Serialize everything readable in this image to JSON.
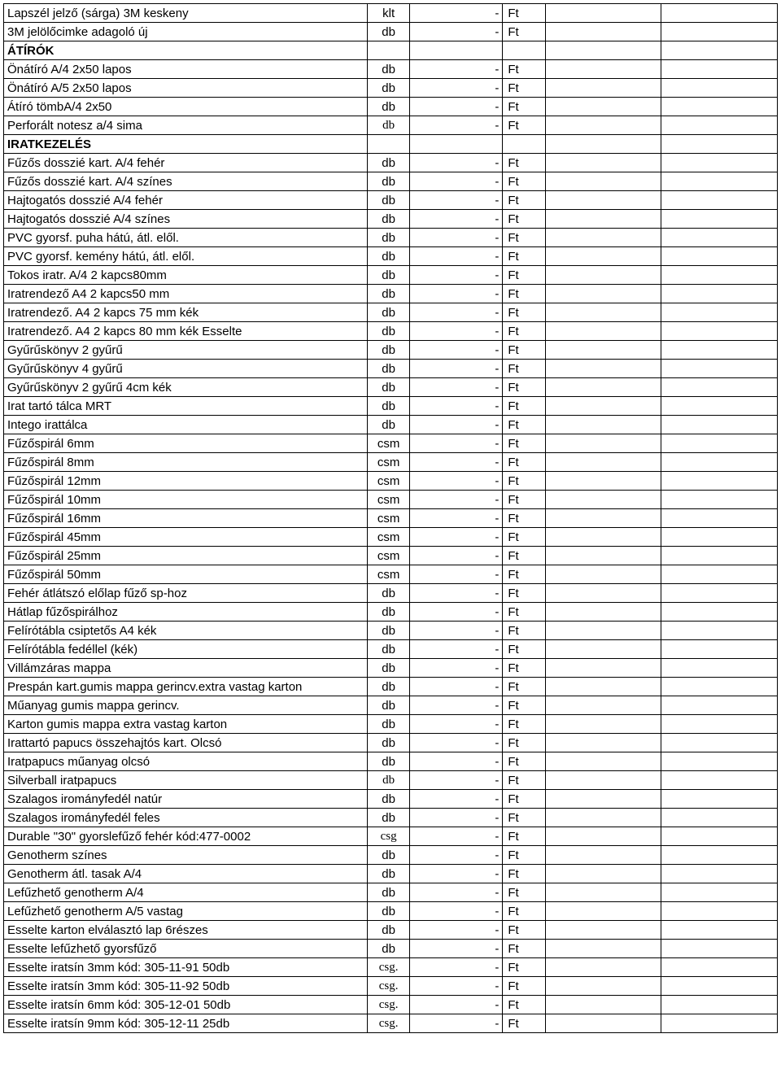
{
  "currency": "Ft",
  "price_placeholder": "-",
  "rows": [
    {
      "desc": "Lapszél jelző (sárga) 3M keskeny",
      "unit": "klt",
      "price": "-",
      "currency": "Ft"
    },
    {
      "desc": "3M jelölőcimke adagoló új",
      "unit": "db",
      "price": "-",
      "currency": "Ft"
    },
    {
      "desc": "ÁTÍRÓK",
      "section": true
    },
    {
      "desc": "Önátíró A/4 2x50 lapos",
      "unit": "db",
      "price": "-",
      "currency": "Ft"
    },
    {
      "desc": "Önátíró A/5 2x50 lapos",
      "unit": "db",
      "price": "-",
      "currency": "Ft"
    },
    {
      "desc": "Átíró tömbA/4 2x50",
      "unit": "db",
      "price": "-",
      "currency": "Ft"
    },
    {
      "desc": "Perforált notesz a/4 sima",
      "unit": "db",
      "unit_serif": true,
      "price": "-",
      "currency": "Ft"
    },
    {
      "desc": "IRATKEZELÉS",
      "section": true
    },
    {
      "desc": "Fűzős dosszié kart. A/4 fehér",
      "unit": "db",
      "price": "-",
      "currency": "Ft"
    },
    {
      "desc": "Fűzős dosszié kart.  A/4 színes",
      "unit": "db",
      "price": "-",
      "currency": "Ft"
    },
    {
      "desc": "Hajtogatós dosszié A/4 fehér",
      "unit": "db",
      "price": "-",
      "currency": "Ft"
    },
    {
      "desc": "Hajtogatós dosszié A/4 színes",
      "unit": "db",
      "price": "-",
      "currency": "Ft"
    },
    {
      "desc": "PVC gyorsf. puha hátú, átl. elől.",
      "unit": "db",
      "price": "-",
      "currency": "Ft"
    },
    {
      "desc": "PVC gyorsf. kemény hátú, átl. elől.",
      "unit": "db",
      "price": "-",
      "currency": "Ft"
    },
    {
      "desc": "Tokos iratr. A/4 2 kapcs80mm",
      "unit": "db",
      "price": "-",
      "currency": "Ft"
    },
    {
      "desc": "Iratrendező A4 2 kapcs50 mm",
      "unit": "db",
      "price": "-",
      "currency": "Ft"
    },
    {
      "desc": "Iratrendező. A4 2 kapcs 75 mm kék",
      "unit": "db",
      "price": "-",
      "currency": "Ft"
    },
    {
      "desc": "Iratrendező. A4 2 kapcs 80 mm kék Esselte",
      "unit": "db",
      "price": "-",
      "currency": "Ft"
    },
    {
      "desc": "Gyűrűskönyv 2 gyűrű",
      "unit": "db",
      "price": "-",
      "currency": "Ft"
    },
    {
      "desc": "Gyűrűskönyv 4 gyűrű",
      "unit": "db",
      "price": "-",
      "currency": "Ft"
    },
    {
      "desc": "Gyűrűskönyv 2 gyűrű 4cm kék",
      "unit": "db",
      "price": "-",
      "currency": "Ft"
    },
    {
      "desc": "Irat tartó tálca MRT",
      "unit": "db",
      "price": "-",
      "currency": "Ft"
    },
    {
      "desc": "Intego irattálca",
      "unit": "db",
      "price": "-",
      "currency": "Ft"
    },
    {
      "desc": "Fűzőspirál 6mm",
      "unit": "csm",
      "price": "-",
      "currency": "Ft"
    },
    {
      "desc": "Fűzőspirál 8mm",
      "unit": "csm",
      "price": "-",
      "currency": "Ft"
    },
    {
      "desc": "Fűzőspirál 12mm",
      "unit": "csm",
      "price": "-",
      "currency": "Ft"
    },
    {
      "desc": "Fűzőspirál 10mm",
      "unit": "csm",
      "price": "-",
      "currency": "Ft"
    },
    {
      "desc": "Fűzőspirál 16mm",
      "unit": "csm",
      "price": "-",
      "currency": "Ft"
    },
    {
      "desc": "Fűzőspirál 45mm",
      "unit": "csm",
      "price": "-",
      "currency": "Ft"
    },
    {
      "desc": "Fűzőspirál 25mm",
      "unit": "csm",
      "price": "-",
      "currency": "Ft"
    },
    {
      "desc": "Fűzőspirál 50mm",
      "unit": "csm",
      "price": "-",
      "currency": "Ft"
    },
    {
      "desc": "Fehér átlátszó előlap fűző sp-hoz",
      "unit": "db",
      "price": "-",
      "currency": "Ft"
    },
    {
      "desc": "Hátlap fűzőspirálhoz",
      "unit": "db",
      "price": "-",
      "currency": "Ft"
    },
    {
      "desc": "Felírótábla csiptetős A4 kék",
      "unit": "db",
      "price": "-",
      "currency": "Ft"
    },
    {
      "desc": "Felírótábla fedéllel (kék)",
      "unit": "db",
      "price": "-",
      "currency": "Ft"
    },
    {
      "desc": "Villámzáras mappa",
      "unit": "db",
      "price": "-",
      "currency": "Ft"
    },
    {
      "desc": "Prespán kart.gumis mappa gerincv.extra vastag karton",
      "unit": "db",
      "price": "-",
      "currency": "Ft"
    },
    {
      "desc": "Műanyag gumis mappa gerincv.",
      "unit": "db",
      "price": "-",
      "currency": "Ft"
    },
    {
      "desc": "Karton gumis mappa extra vastag karton",
      "unit": "db",
      "price": "-",
      "currency": "Ft"
    },
    {
      "desc": "Irattartó papucs összehajtós kart. Olcsó",
      "unit": "db",
      "price": "-",
      "currency": "Ft"
    },
    {
      "desc": "Iratpapucs műanyag olcsó",
      "unit": "db",
      "price": "-",
      "currency": "Ft"
    },
    {
      "desc": "Silverball iratpapucs",
      "unit": "db",
      "unit_serif": true,
      "price": "-",
      "currency": "Ft"
    },
    {
      "desc": "Szalagos irományfedél natúr",
      "unit": "db",
      "price": "-",
      "currency": "Ft"
    },
    {
      "desc": "Szalagos irományfedél feles",
      "unit": "db",
      "price": "-",
      "currency": "Ft"
    },
    {
      "desc": "Durable \"30\"  gyorslefűző fehér kód:477-0002",
      "unit": "csg",
      "unit_serif": true,
      "price": "-",
      "currency": "Ft"
    },
    {
      "desc": "Genotherm színes",
      "unit": "db",
      "price": "-",
      "currency": "Ft"
    },
    {
      "desc": "Genotherm átl. tasak A/4",
      "unit": "db",
      "price": "-",
      "currency": "Ft"
    },
    {
      "desc": "Lefűzhető genotherm A/4",
      "unit": "db",
      "price": "-",
      "currency": "Ft"
    },
    {
      "desc": "Lefűzhető genotherm A/5 vastag",
      "unit": "db",
      "price": "-",
      "currency": "Ft"
    },
    {
      "desc": "Esselte karton elválasztó lap 6részes",
      "unit": "db",
      "price": "-",
      "currency": "Ft"
    },
    {
      "desc": "Esselte lefűzhető gyorsfűző",
      "unit": "db",
      "price": "-",
      "currency": "Ft"
    },
    {
      "desc": "Esselte iratsín 3mm kód: 305-11-91 50db",
      "unit": "csg.",
      "unit_serif": true,
      "price": "-",
      "currency": "Ft"
    },
    {
      "desc": "Esselte iratsín 3mm kód: 305-11-92 50db",
      "unit": "csg.",
      "unit_serif": true,
      "price": "-",
      "currency": "Ft"
    },
    {
      "desc": "Esselte iratsín 6mm kód: 305-12-01 50db",
      "unit": "csg.",
      "unit_serif": true,
      "price": "-",
      "currency": "Ft"
    },
    {
      "desc": "Esselte iratsín 9mm kód: 305-12-11 25db",
      "unit": "csg.",
      "unit_serif": true,
      "price": "-",
      "currency": "Ft"
    }
  ]
}
